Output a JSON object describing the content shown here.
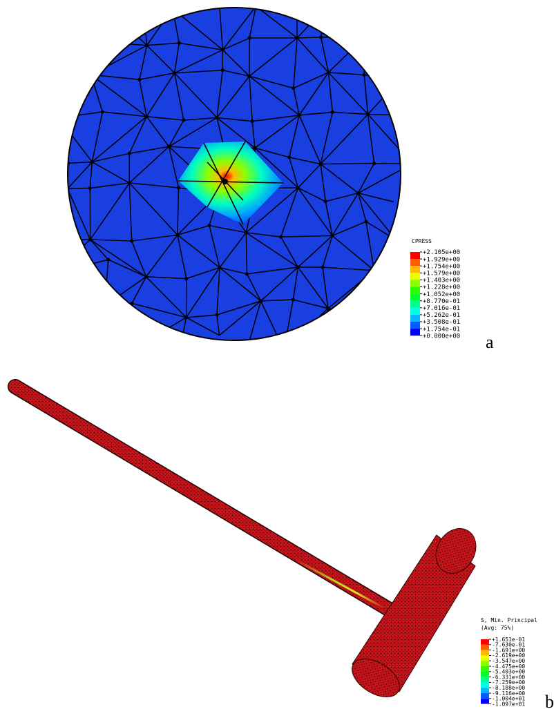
{
  "panel_a": {
    "legend_title": "CPRESS",
    "legend_labels": [
      "+2.105e+00",
      "+1.929e+00",
      "+1.754e+00",
      "+1.579e+00",
      "+1.403e+00",
      "+1.228e+00",
      "+1.052e+00",
      "+8.770e-01",
      "+7.016e-01",
      "+5.262e-01",
      "+3.508e-01",
      "+1.754e-01",
      "+0.000e+00"
    ],
    "label": "a"
  },
  "panel_b": {
    "legend_title": "S, Min. Principal",
    "legend_subtitle": "(Avg: 75%)",
    "legend_labels": [
      "+1.651e-01",
      "-7.630e-01",
      "-1.691e+00",
      "-2.619e+00",
      "-3.547e+00",
      "-4.475e+00",
      "-5.403e+00",
      "-6.331e+00",
      "-7.259e+00",
      "-8.188e+00",
      "-9.116e+00",
      "-1.004e+01",
      "-1.097e+01"
    ],
    "label": "b"
  }
}
